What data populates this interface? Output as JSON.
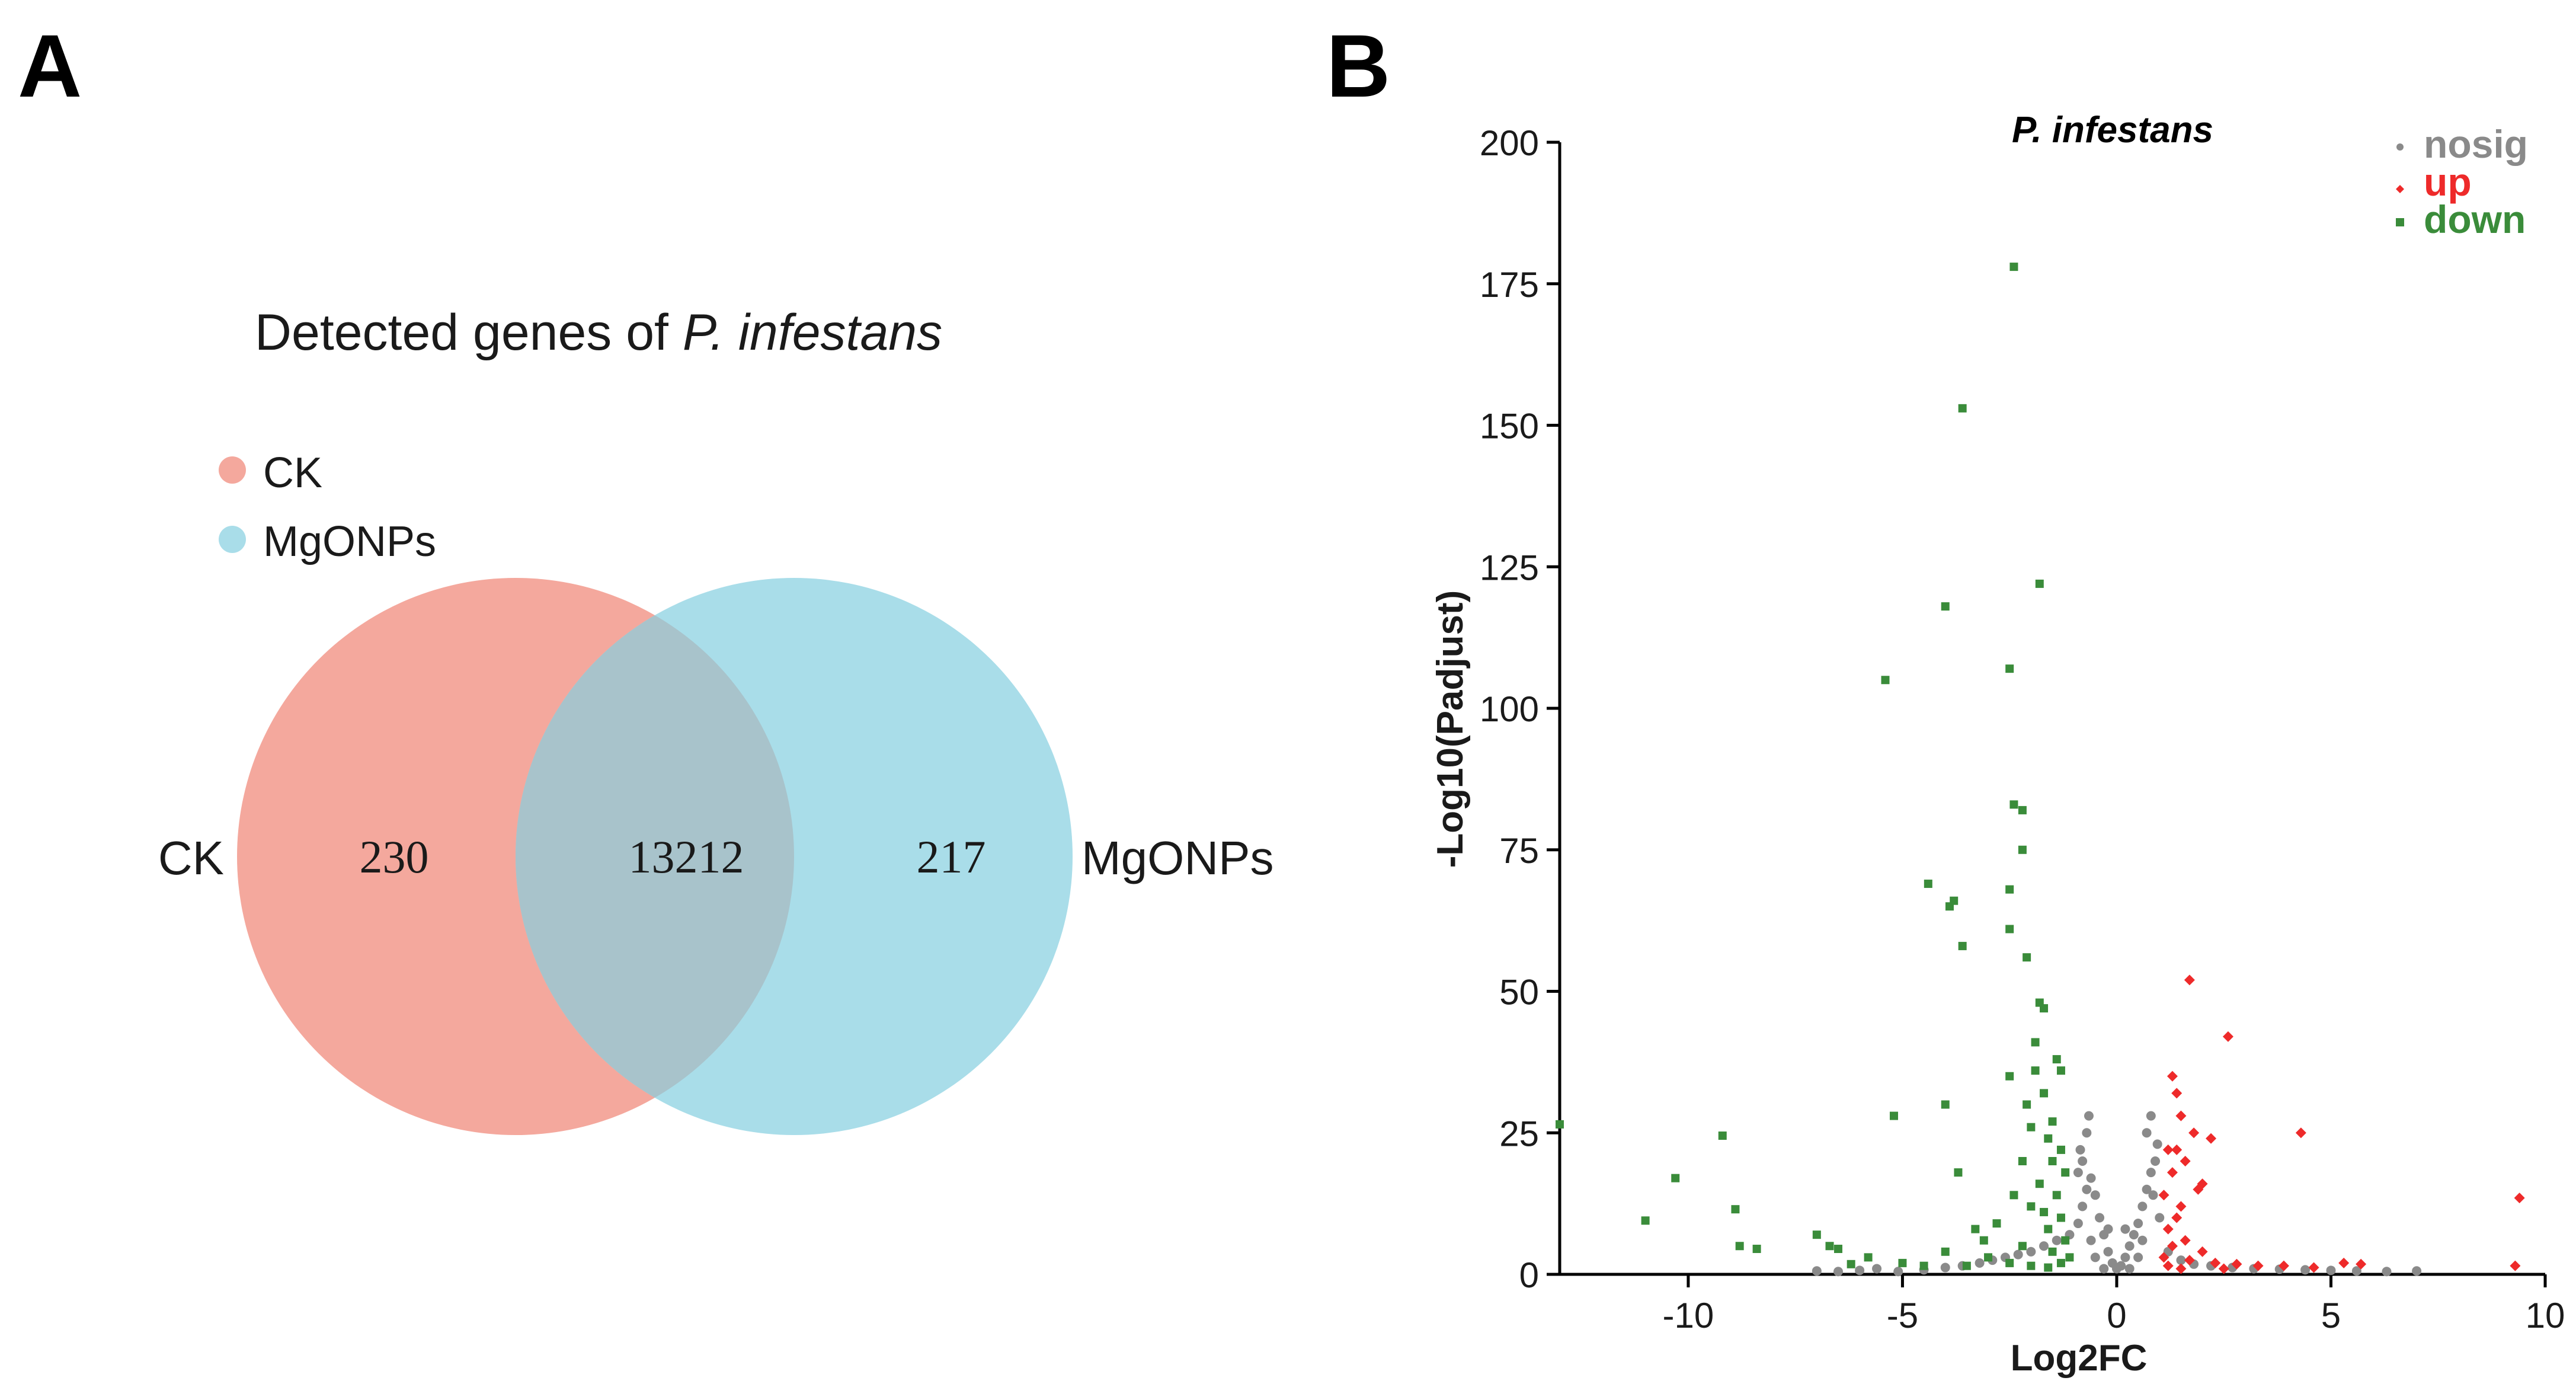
{
  "panels": {
    "a": {
      "letter": "A"
    },
    "b": {
      "letter": "B"
    }
  },
  "venn": {
    "title_prefix": "Detected genes of ",
    "title_species": "P. infestans",
    "legend": [
      {
        "label": "CK",
        "color": "#f4a89d"
      },
      {
        "label": "MgONPs",
        "color": "#a9dde9"
      }
    ],
    "overlap_color": "#a8c3cb",
    "left_label": "CK",
    "right_label": "MgONPs",
    "left_only": "230",
    "both": "13212",
    "right_only": "217"
  },
  "chart_data": {
    "type": "scatter",
    "title": "P. infestans",
    "xlabel": "Log2FC",
    "ylabel": "-Log10(Padjust)",
    "xlim": [
      -13,
      10
    ],
    "ylim": [
      0,
      200
    ],
    "xticks": [
      -10,
      -5,
      0,
      5,
      10
    ],
    "yticks": [
      0,
      25,
      50,
      75,
      100,
      125,
      150,
      175,
      200
    ],
    "xtick_labels": [
      "-10",
      "-5",
      "0",
      "5",
      "10"
    ],
    "ytick_labels": [
      "0",
      "25",
      "50",
      "75",
      "100",
      "125",
      "150",
      "175",
      "200"
    ],
    "legend_position": "top-right",
    "series": [
      {
        "name": "nosig",
        "color": "#8a8a8a",
        "marker": "circle",
        "points": [
          [
            -5.1,
            0.5
          ],
          [
            -4.5,
            0.8
          ],
          [
            -4.0,
            1.2
          ],
          [
            -3.6,
            1.5
          ],
          [
            -3.2,
            2.0
          ],
          [
            -2.9,
            2.5
          ],
          [
            -2.6,
            3.0
          ],
          [
            -2.3,
            3.5
          ],
          [
            -2.0,
            4.0
          ],
          [
            -1.7,
            5.0
          ],
          [
            -1.4,
            6.0
          ],
          [
            -1.1,
            7.0
          ],
          [
            -0.9,
            9.0
          ],
          [
            -0.8,
            12.0
          ],
          [
            -0.7,
            15.0
          ],
          [
            -0.6,
            17.0
          ],
          [
            -0.5,
            14.0
          ],
          [
            -0.4,
            10.0
          ],
          [
            -0.3,
            7.0
          ],
          [
            -0.2,
            4.0
          ],
          [
            -0.1,
            2.0
          ],
          [
            0.0,
            1.0
          ],
          [
            0.1,
            1.5
          ],
          [
            0.2,
            3.0
          ],
          [
            0.3,
            5.0
          ],
          [
            0.4,
            7.0
          ],
          [
            0.5,
            9.0
          ],
          [
            0.6,
            12.0
          ],
          [
            0.7,
            15.0
          ],
          [
            0.8,
            18.0
          ],
          [
            0.9,
            20.0
          ],
          [
            0.95,
            23.0
          ],
          [
            0.7,
            25.0
          ],
          [
            0.8,
            28.0
          ],
          [
            -0.7,
            25.0
          ],
          [
            -0.65,
            28.0
          ],
          [
            -0.8,
            20.0
          ],
          [
            -0.9,
            18.0
          ],
          [
            1.0,
            10.0
          ],
          [
            1.2,
            4.0
          ],
          [
            1.5,
            2.5
          ],
          [
            1.8,
            1.8
          ],
          [
            2.2,
            1.5
          ],
          [
            2.7,
            1.2
          ],
          [
            3.2,
            1.0
          ],
          [
            3.8,
            0.9
          ],
          [
            4.4,
            0.8
          ],
          [
            5.0,
            0.7
          ],
          [
            5.6,
            0.6
          ],
          [
            6.3,
            0.5
          ],
          [
            7.0,
            0.6
          ],
          [
            -5.6,
            1.0
          ],
          [
            -6.0,
            0.7
          ],
          [
            -6.5,
            0.5
          ],
          [
            -7.0,
            0.6
          ],
          [
            -0.3,
            1.0
          ],
          [
            0.3,
            1.0
          ],
          [
            -0.5,
            3.0
          ],
          [
            0.5,
            3.0
          ],
          [
            -0.2,
            8.0
          ],
          [
            0.2,
            8.0
          ],
          [
            -0.6,
            6.0
          ],
          [
            0.6,
            6.0
          ],
          [
            -0.85,
            22.0
          ],
          [
            0.85,
            14.0
          ]
        ]
      },
      {
        "name": "up",
        "color": "#ee2a2a",
        "marker": "diamond",
        "points": [
          [
            1.7,
            52.0
          ],
          [
            2.6,
            42.0
          ],
          [
            1.3,
            35.0
          ],
          [
            1.4,
            32.0
          ],
          [
            1.5,
            28.0
          ],
          [
            1.8,
            25.0
          ],
          [
            2.2,
            24.0
          ],
          [
            4.3,
            25.0
          ],
          [
            1.2,
            22.0
          ],
          [
            1.6,
            20.0
          ],
          [
            1.3,
            18.0
          ],
          [
            1.9,
            15.0
          ],
          [
            1.1,
            14.0
          ],
          [
            1.5,
            12.0
          ],
          [
            1.4,
            10.0
          ],
          [
            1.2,
            8.0
          ],
          [
            1.6,
            6.0
          ],
          [
            1.3,
            5.0
          ],
          [
            2.0,
            4.0
          ],
          [
            1.1,
            3.0
          ],
          [
            1.7,
            2.5
          ],
          [
            2.3,
            2.0
          ],
          [
            2.8,
            1.8
          ],
          [
            3.3,
            1.5
          ],
          [
            3.9,
            1.5
          ],
          [
            5.3,
            2.0
          ],
          [
            5.7,
            1.8
          ],
          [
            9.4,
            13.5
          ],
          [
            9.3,
            1.5
          ],
          [
            4.6,
            1.2
          ],
          [
            1.2,
            1.5
          ],
          [
            1.5,
            1.0
          ],
          [
            2.5,
            1.0
          ],
          [
            1.4,
            22.0
          ],
          [
            2.0,
            16.0
          ]
        ]
      },
      {
        "name": "down",
        "color": "#3a8c3a",
        "marker": "square",
        "points": [
          [
            -2.4,
            178.0
          ],
          [
            -3.6,
            153.0
          ],
          [
            -1.8,
            122.0
          ],
          [
            -4.0,
            118.0
          ],
          [
            -2.5,
            107.0
          ],
          [
            -5.4,
            105.0
          ],
          [
            -2.4,
            83.0
          ],
          [
            -2.2,
            82.0
          ],
          [
            -2.2,
            75.0
          ],
          [
            -4.4,
            69.0
          ],
          [
            -3.8,
            66.0
          ],
          [
            -3.9,
            65.0
          ],
          [
            -2.5,
            68.0
          ],
          [
            -2.5,
            61.0
          ],
          [
            -3.6,
            58.0
          ],
          [
            -2.1,
            56.0
          ],
          [
            -1.8,
            48.0
          ],
          [
            -1.7,
            47.0
          ],
          [
            -1.9,
            41.0
          ],
          [
            -1.4,
            38.0
          ],
          [
            -1.3,
            36.0
          ],
          [
            -2.5,
            35.0
          ],
          [
            -1.7,
            32.0
          ],
          [
            -4.0,
            30.0
          ],
          [
            -5.2,
            28.0
          ],
          [
            -1.5,
            27.0
          ],
          [
            -2.0,
            26.0
          ],
          [
            -1.6,
            24.0
          ],
          [
            -1.3,
            22.0
          ],
          [
            -2.2,
            20.0
          ],
          [
            -1.2,
            18.0
          ],
          [
            -3.7,
            18.0
          ],
          [
            -1.8,
            16.0
          ],
          [
            -1.4,
            14.0
          ],
          [
            -2.0,
            12.0
          ],
          [
            -1.3,
            10.0
          ],
          [
            -2.8,
            9.0
          ],
          [
            -3.3,
            8.0
          ],
          [
            -1.6,
            8.0
          ],
          [
            -1.2,
            6.0
          ],
          [
            -2.2,
            5.0
          ],
          [
            -4.0,
            4.0
          ],
          [
            -1.5,
            4.0
          ],
          [
            -3.0,
            3.0
          ],
          [
            -5.0,
            2.0
          ],
          [
            -2.5,
            2.0
          ],
          [
            -4.5,
            1.5
          ],
          [
            -6.2,
            1.8
          ],
          [
            -1.1,
            3.0
          ],
          [
            -13.0,
            26.5
          ],
          [
            -9.2,
            24.5
          ],
          [
            -10.3,
            17.0
          ],
          [
            -11.0,
            9.5
          ],
          [
            -8.9,
            11.5
          ],
          [
            -8.8,
            5.0
          ],
          [
            -8.4,
            4.5
          ],
          [
            -7.0,
            7.0
          ],
          [
            -6.7,
            5.0
          ],
          [
            -6.5,
            4.5
          ],
          [
            -5.8,
            3.0
          ],
          [
            -3.5,
            1.5
          ],
          [
            -2.0,
            1.5
          ],
          [
            -1.6,
            1.2
          ],
          [
            -1.9,
            36.0
          ],
          [
            -2.1,
            30.0
          ],
          [
            -1.5,
            20.0
          ],
          [
            -2.4,
            14.0
          ],
          [
            -1.7,
            11.0
          ],
          [
            -3.1,
            6.0
          ],
          [
            -1.3,
            2.0
          ]
        ]
      }
    ]
  }
}
